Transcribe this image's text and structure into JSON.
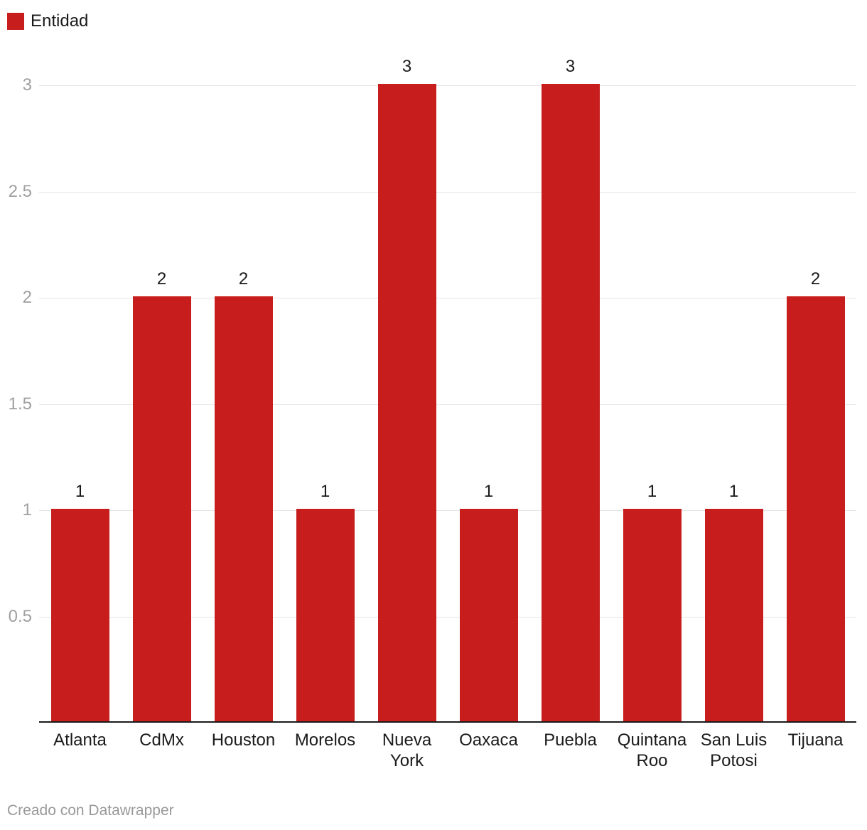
{
  "legend": {
    "label": "Entidad"
  },
  "footer": {
    "text": "Creado con Datawrapper"
  },
  "colors": {
    "bar": "#c71e1d",
    "axis_line": "#1a1a1a",
    "gridline": "#e4e4e4",
    "tick_label": "#a0a0a0",
    "value_label": "#1a1a1a",
    "category_label": "#1a1a1a",
    "footer_text": "#999999"
  },
  "chart_data": {
    "type": "bar",
    "categories": [
      "Atlanta",
      "CdMx",
      "Houston",
      "Morelos",
      "Nueva York",
      "Oaxaca",
      "Puebla",
      "Quintana Roo",
      "San Luis Potosi",
      "Tijuana"
    ],
    "values": [
      1,
      2,
      2,
      1,
      3,
      1,
      3,
      1,
      1,
      2
    ],
    "series_name": "Entidad",
    "title": "",
    "xlabel": "",
    "ylabel": "",
    "ylim": [
      0,
      3
    ],
    "yticks": [
      0.5,
      1,
      1.5,
      2,
      2.5,
      3
    ],
    "grid": true,
    "legend_position": "top-left",
    "value_labels_shown": true,
    "attribution": "Creado con Datawrapper"
  }
}
